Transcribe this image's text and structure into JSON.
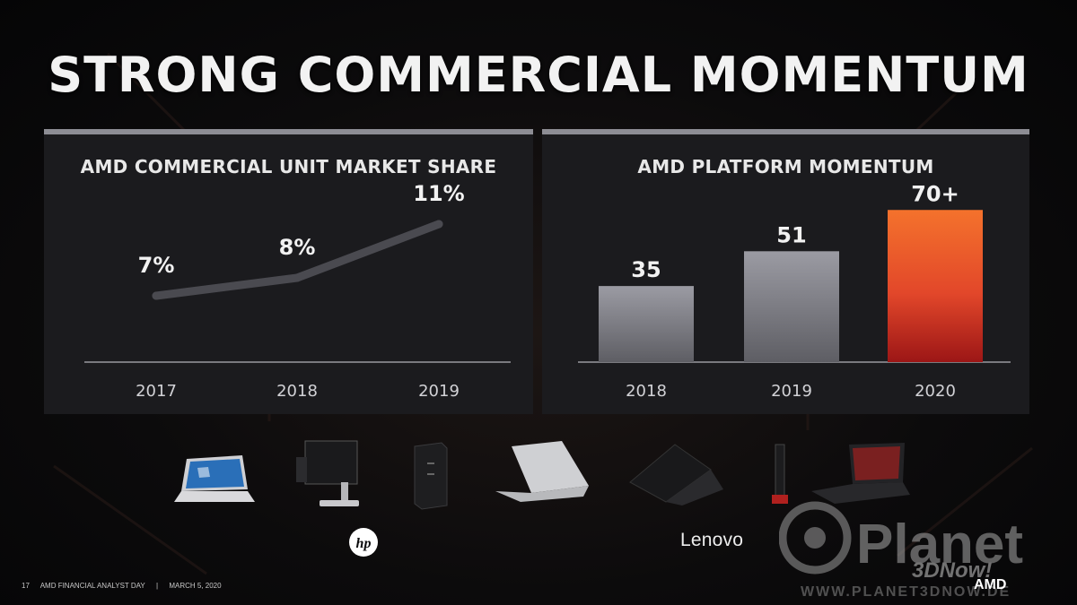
{
  "title": "STRONG COMMERCIAL MOMENTUM",
  "chart_data": [
    {
      "type": "line",
      "title": "AMD COMMERCIAL UNIT MARKET SHARE",
      "categories": [
        "2017",
        "2018",
        "2019"
      ],
      "values": [
        7,
        8,
        11
      ],
      "labels": [
        "7%",
        "8%",
        "11%"
      ],
      "ylim": [
        5,
        12
      ],
      "color": "#4a4a50",
      "xlabel": "",
      "ylabel": ""
    },
    {
      "type": "bar",
      "title": "AMD PLATFORM MOMENTUM",
      "categories": [
        "2018",
        "2019",
        "2020"
      ],
      "values": [
        35,
        51,
        70
      ],
      "labels": [
        "35",
        "51",
        "70+"
      ],
      "ylim": [
        0,
        80
      ],
      "colors": [
        "#8c8c93",
        "#8c8c93",
        "#e8532a"
      ],
      "xlabel": "",
      "ylabel": ""
    }
  ],
  "brands": {
    "hp": "hp",
    "lenovo": "Lenovo"
  },
  "footer": {
    "page": "17",
    "event": "AMD FINANCIAL ANALYST DAY",
    "separator": "|",
    "date": "MARCH 5, 2020"
  },
  "logo": "AMD",
  "watermark": {
    "name": "Planet",
    "sub": "3DNow!",
    "url": "WWW.PLANET3DNOW.DE"
  }
}
